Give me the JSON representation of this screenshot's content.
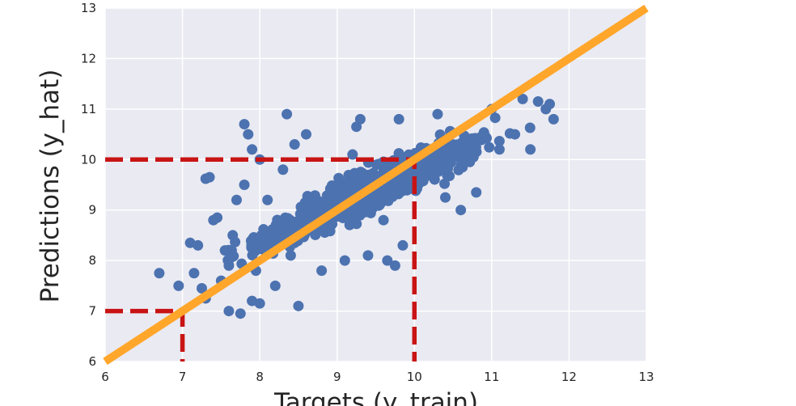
{
  "chart_data": {
    "type": "scatter",
    "title": "",
    "xlabel": "Targets (y_train)",
    "ylabel": "Predictions (y_hat)",
    "xlim": [
      6,
      13
    ],
    "ylim": [
      6,
      13
    ],
    "xticks": [
      "6",
      "7",
      "8",
      "9",
      "10",
      "11",
      "12",
      "13"
    ],
    "yticks": [
      "6",
      "7",
      "8",
      "9",
      "10",
      "11",
      "12",
      "13"
    ],
    "grid": true,
    "colors": {
      "background": "#EAEAF2",
      "points": "#4C72B0",
      "fit_line": "#FFA62B",
      "guide_lines": "#C81414"
    },
    "fit_line": {
      "x": [
        6,
        13
      ],
      "y": [
        6,
        13
      ]
    },
    "guide_lines": [
      {
        "points": [
          [
            6,
            7
          ],
          [
            7,
            7
          ],
          [
            7,
            6
          ]
        ]
      },
      {
        "points": [
          [
            6,
            10
          ],
          [
            10,
            10
          ],
          [
            10,
            6
          ]
        ]
      }
    ],
    "series": [
      {
        "points": [
          [
            6.7,
            7.75
          ],
          [
            6.95,
            7.5
          ],
          [
            7.1,
            8.35
          ],
          [
            7.15,
            7.75
          ],
          [
            7.2,
            8.3
          ],
          [
            7.25,
            7.45
          ],
          [
            7.3,
            7.25
          ],
          [
            7.3,
            9.62
          ],
          [
            7.35,
            9.65
          ],
          [
            7.4,
            8.8
          ],
          [
            7.45,
            8.85
          ],
          [
            7.5,
            7.6
          ],
          [
            7.55,
            8.2
          ],
          [
            7.6,
            7.0
          ],
          [
            7.65,
            8.5
          ],
          [
            7.7,
            9.2
          ],
          [
            7.75,
            6.95
          ],
          [
            7.8,
            10.7
          ],
          [
            7.8,
            9.5
          ],
          [
            7.85,
            10.5
          ],
          [
            7.9,
            7.2
          ],
          [
            7.9,
            10.2
          ],
          [
            8.0,
            10.0
          ],
          [
            8.0,
            7.15
          ],
          [
            8.1,
            9.2
          ],
          [
            8.2,
            7.5
          ],
          [
            8.3,
            9.8
          ],
          [
            8.35,
            10.9
          ],
          [
            8.45,
            10.3
          ],
          [
            8.5,
            7.1
          ],
          [
            8.6,
            10.5
          ],
          [
            8.7,
            9.0
          ],
          [
            8.8,
            7.8
          ],
          [
            9.1,
            8.0
          ],
          [
            9.2,
            10.1
          ],
          [
            9.25,
            10.65
          ],
          [
            9.3,
            10.8
          ],
          [
            9.4,
            8.1
          ],
          [
            9.6,
            8.8
          ],
          [
            9.65,
            8.0
          ],
          [
            9.75,
            7.9
          ],
          [
            9.8,
            10.8
          ],
          [
            9.85,
            8.3
          ],
          [
            10.3,
            10.9
          ],
          [
            10.4,
            9.25
          ],
          [
            10.6,
            9.0
          ],
          [
            10.8,
            9.35
          ],
          [
            10.9,
            10.5
          ],
          [
            11.0,
            11.0
          ],
          [
            11.1,
            10.2
          ],
          [
            11.3,
            10.5
          ],
          [
            11.5,
            10.2
          ],
          [
            11.6,
            11.15
          ],
          [
            11.7,
            11.0
          ],
          [
            11.75,
            11.1
          ],
          [
            11.8,
            10.8
          ],
          [
            11.4,
            11.2
          ],
          [
            10.5,
            10.1
          ],
          [
            10.1,
            9.6
          ],
          [
            9.55,
            9.1
          ],
          [
            8.9,
            8.6
          ],
          [
            8.4,
            8.1
          ],
          [
            7.95,
            7.8
          ],
          [
            7.6,
            7.9
          ]
        ],
        "cloud": {
          "count": 1100,
          "x_min": 7.05,
          "x_max": 11.75,
          "slope": 0.72,
          "intercept": 2.6,
          "spread": 0.3
        }
      }
    ]
  }
}
